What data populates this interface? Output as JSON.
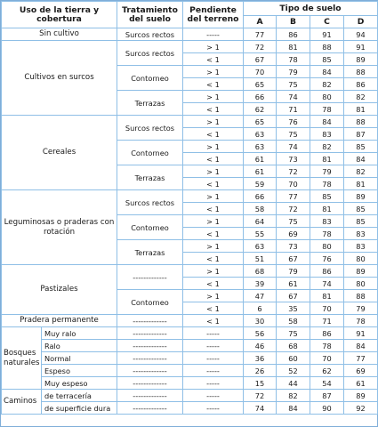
{
  "headers": {
    "uso": "Uso de la tierra y cobertura",
    "tratamiento": "Tratamiento del suelo",
    "pendiente": "Pendiente del terreno",
    "tipo": "Tipo de suelo",
    "cols": [
      "A",
      "B",
      "C",
      "D"
    ]
  },
  "rows": [
    {
      "uso": "Sin cultivo",
      "trat": "Surcos rectos",
      "pend": "-----",
      "v": [
        "77",
        "86",
        "91",
        "94"
      ]
    },
    {
      "uso": "Cultivos en surcos",
      "trat": "Surcos rectos",
      "pend": "> 1",
      "v": [
        "72",
        "81",
        "88",
        "91"
      ]
    },
    {
      "pend": "< 1",
      "v": [
        "67",
        "78",
        "85",
        "89"
      ]
    },
    {
      "trat": "Contorneo",
      "pend": "> 1",
      "v": [
        "70",
        "79",
        "84",
        "88"
      ]
    },
    {
      "pend": "< 1",
      "v": [
        "65",
        "75",
        "82",
        "86"
      ]
    },
    {
      "trat": "Terrazas",
      "pend": "> 1",
      "v": [
        "66",
        "74",
        "80",
        "82"
      ]
    },
    {
      "pend": "< 1",
      "v": [
        "62",
        "71",
        "78",
        "81"
      ]
    },
    {
      "uso": "Cereales",
      "trat": "Surcos rectos",
      "pend": "> 1",
      "v": [
        "65",
        "76",
        "84",
        "88"
      ]
    },
    {
      "pend": "< 1",
      "v": [
        "63",
        "75",
        "83",
        "87"
      ]
    },
    {
      "trat": "Contorneo",
      "pend": "> 1",
      "v": [
        "63",
        "74",
        "82",
        "85"
      ]
    },
    {
      "pend": "< 1",
      "v": [
        "61",
        "73",
        "81",
        "84"
      ]
    },
    {
      "trat": "Terrazas",
      "pend": "> 1",
      "v": [
        "61",
        "72",
        "79",
        "82"
      ]
    },
    {
      "pend": "< 1",
      "v": [
        "59",
        "70",
        "78",
        "81"
      ]
    },
    {
      "uso": "Leguminosas o praderas con rotación",
      "trat": "Surcos rectos",
      "pend": "> 1",
      "v": [
        "66",
        "77",
        "85",
        "89"
      ]
    },
    {
      "pend": "< 1",
      "v": [
        "58",
        "72",
        "81",
        "85"
      ]
    },
    {
      "trat": "Contorneo",
      "pend": "> 1",
      "v": [
        "64",
        "75",
        "83",
        "85"
      ]
    },
    {
      "pend": "< 1",
      "v": [
        "55",
        "69",
        "78",
        "83"
      ]
    },
    {
      "trat": "Terrazas",
      "pend": "> 1",
      "v": [
        "63",
        "73",
        "80",
        "83"
      ]
    },
    {
      "pend": "< 1",
      "v": [
        "51",
        "67",
        "76",
        "80"
      ]
    },
    {
      "uso": "Pastizales",
      "trat": "-------------",
      "pend": "> 1",
      "v": [
        "68",
        "79",
        "86",
        "89"
      ]
    },
    {
      "pend": "< 1",
      "v": [
        "39",
        "61",
        "74",
        "80"
      ]
    },
    {
      "trat": "Contorneo",
      "pend": "> 1",
      "v": [
        "47",
        "67",
        "81",
        "88"
      ]
    },
    {
      "pend": "< 1",
      "v": [
        "6",
        "35",
        "70",
        "79"
      ]
    },
    {
      "uso": "Pradera permanente",
      "trat": "-------------",
      "pend": "< 1",
      "v": [
        "30",
        "58",
        "71",
        "78"
      ]
    },
    {
      "uso": "Bosques naturales",
      "sub": "Muy ralo",
      "trat": "-------------",
      "pend": "-----",
      "v": [
        "56",
        "75",
        "86",
        "91"
      ]
    },
    {
      "sub": "Ralo",
      "trat": "-------------",
      "pend": "-----",
      "v": [
        "46",
        "68",
        "78",
        "84"
      ]
    },
    {
      "sub": "Normal",
      "trat": "-------------",
      "pend": "-----",
      "v": [
        "36",
        "60",
        "70",
        "77"
      ]
    },
    {
      "sub": "Espeso",
      "trat": "-------------",
      "pend": "-----",
      "v": [
        "26",
        "52",
        "62",
        "69"
      ]
    },
    {
      "sub": "Muy espeso",
      "trat": "-------------",
      "pend": "-----",
      "v": [
        "15",
        "44",
        "54",
        "61"
      ]
    },
    {
      "uso": "Caminos",
      "sub": "de terracería",
      "trat": "-------------",
      "pend": "-----",
      "v": [
        "72",
        "82",
        "87",
        "89"
      ]
    },
    {
      "sub": "de superficie dura",
      "trat": "-------------",
      "pend": "-----",
      "v": [
        "74",
        "84",
        "90",
        "92"
      ]
    }
  ]
}
